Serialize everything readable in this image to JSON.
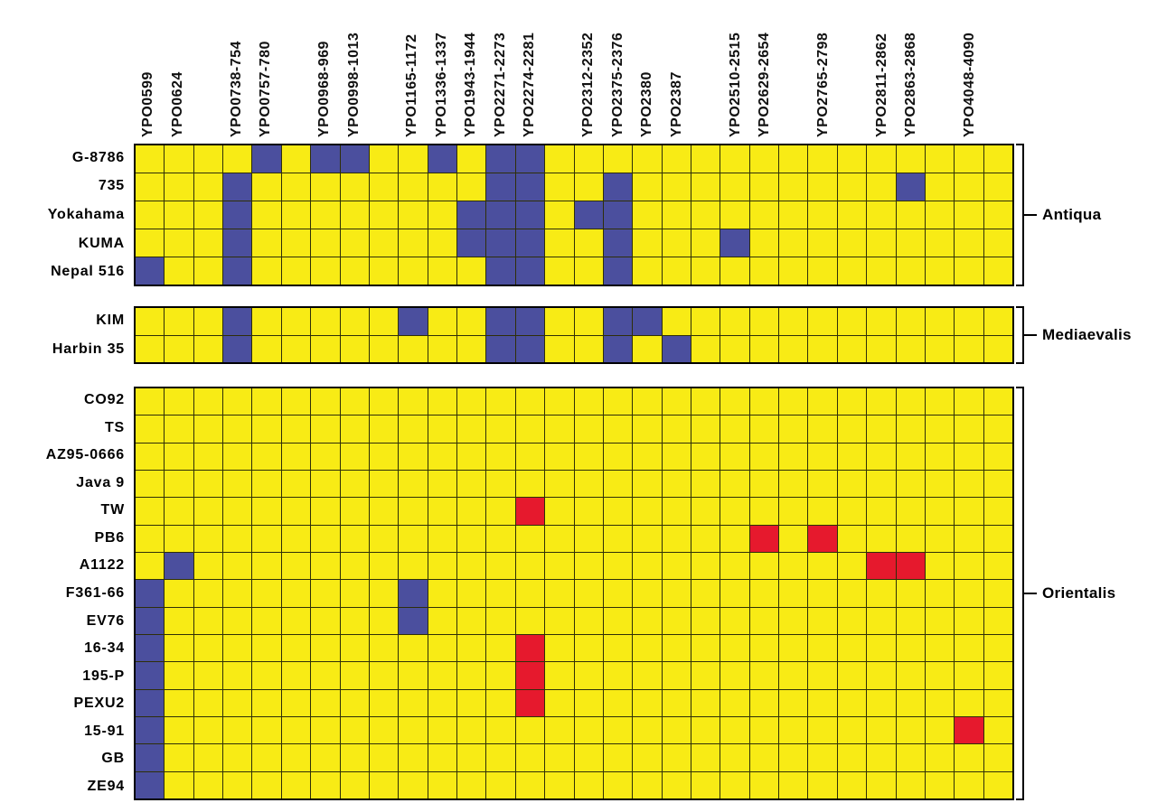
{
  "chart_data": {
    "type": "heatmap",
    "cell_codes": {
      ".": "yellow",
      "B": "blue",
      "R": "red"
    },
    "colors": {
      "yellow": "#f8eb15",
      "blue": "#4b4f9e",
      "red": "#e6192d",
      "gridline": "#2f2f08",
      "border": "#000000"
    },
    "columns": [
      "YPO0599",
      "YPO0624",
      "",
      "YPO0738-754",
      "YPO0757-780",
      "",
      "YPO0968-969",
      "YPO0998-1013",
      "",
      "YPO1165-1172",
      "YPO1336-1337",
      "YPO1943-1944",
      "YPO2271-2273",
      "YPO2274-2281",
      "",
      "YPO2312-2352",
      "YPO2375-2376",
      "YPO2380",
      "YPO2387",
      "",
      "YPO2510-2515",
      "YPO2629-2654",
      "",
      "YPO2765-2798",
      "",
      "YPO2811-2862",
      "YPO2863-2868",
      "",
      "YPO4048-4090",
      ""
    ],
    "groups": [
      {
        "label": "Antiqua",
        "rows": [
          {
            "strain": "G-8786",
            "cells": "....B.BB..B.BB................"
          },
          {
            "strain": "735",
            "cells": "...B........BB..B.........B..."
          },
          {
            "strain": "Yokahama",
            "cells": "...B.......BBB.BB............."
          },
          {
            "strain": "KUMA",
            "cells": "...B.......BBB..B...B........."
          },
          {
            "strain": "Nepal 516",
            "cells": "B..B........BB..B............."
          }
        ]
      },
      {
        "label": "Mediaevalis",
        "rows": [
          {
            "strain": "KIM",
            "cells": "...B.....B..BB..BB............"
          },
          {
            "strain": "Harbin 35",
            "cells": "...B........BB..B.B..........."
          }
        ]
      },
      {
        "label": "Orientalis",
        "rows": [
          {
            "strain": "CO92",
            "cells": ".............................."
          },
          {
            "strain": "TS",
            "cells": ".............................."
          },
          {
            "strain": "AZ95-0666",
            "cells": ".............................."
          },
          {
            "strain": "Java 9",
            "cells": ".............................."
          },
          {
            "strain": "TW",
            "cells": ".............R................"
          },
          {
            "strain": "PB6",
            "cells": ".....................R.R......"
          },
          {
            "strain": "A1122",
            "cells": ".B.......................RR..."
          },
          {
            "strain": "F361-66",
            "cells": "B........B...................."
          },
          {
            "strain": "EV76",
            "cells": "B........B...................."
          },
          {
            "strain": "16-34",
            "cells": "B............R................"
          },
          {
            "strain": "195-P",
            "cells": "B............R................"
          },
          {
            "strain": "PEXU2",
            "cells": "B............R................"
          },
          {
            "strain": "15-91",
            "cells": "B...........................R."
          },
          {
            "strain": "GB",
            "cells": "B............................."
          },
          {
            "strain": "ZE94",
            "cells": "B............................."
          }
        ]
      }
    ]
  }
}
